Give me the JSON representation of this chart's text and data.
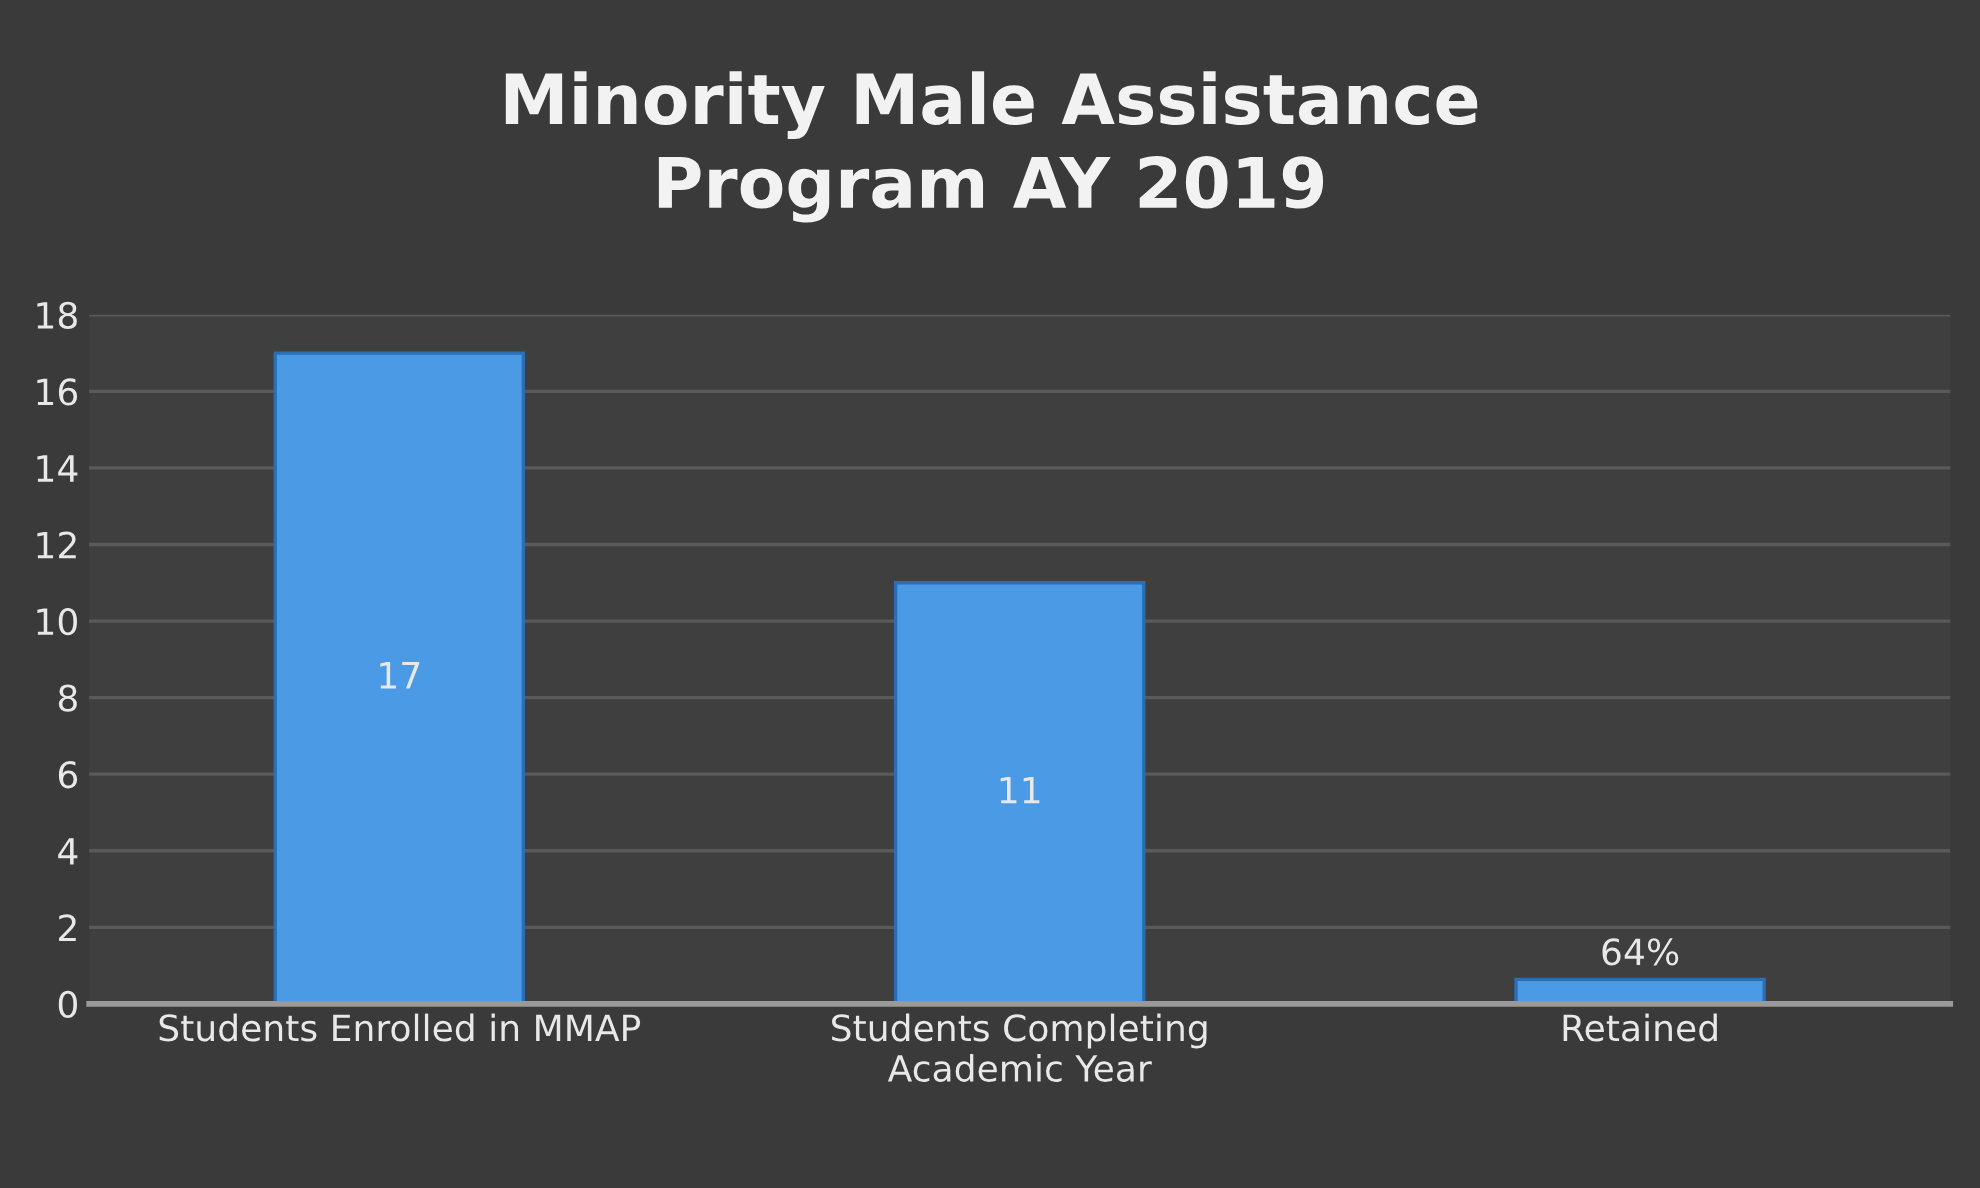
{
  "chart_data": {
    "type": "bar",
    "title": "Minority Male Assistance\nProgram AY 2019",
    "categories": [
      "Students Enrolled in MMAP",
      "Students Completing\nAcademic Year",
      "Retained"
    ],
    "values": [
      17,
      11,
      0.64
    ],
    "value_labels": [
      "17",
      "11",
      "64%"
    ],
    "color": "#4a9ae6",
    "ylim": [
      0,
      18
    ],
    "yticks": [
      0,
      2,
      4,
      6,
      8,
      10,
      12,
      14,
      16,
      18
    ],
    "grid": "y",
    "legend": false
  }
}
